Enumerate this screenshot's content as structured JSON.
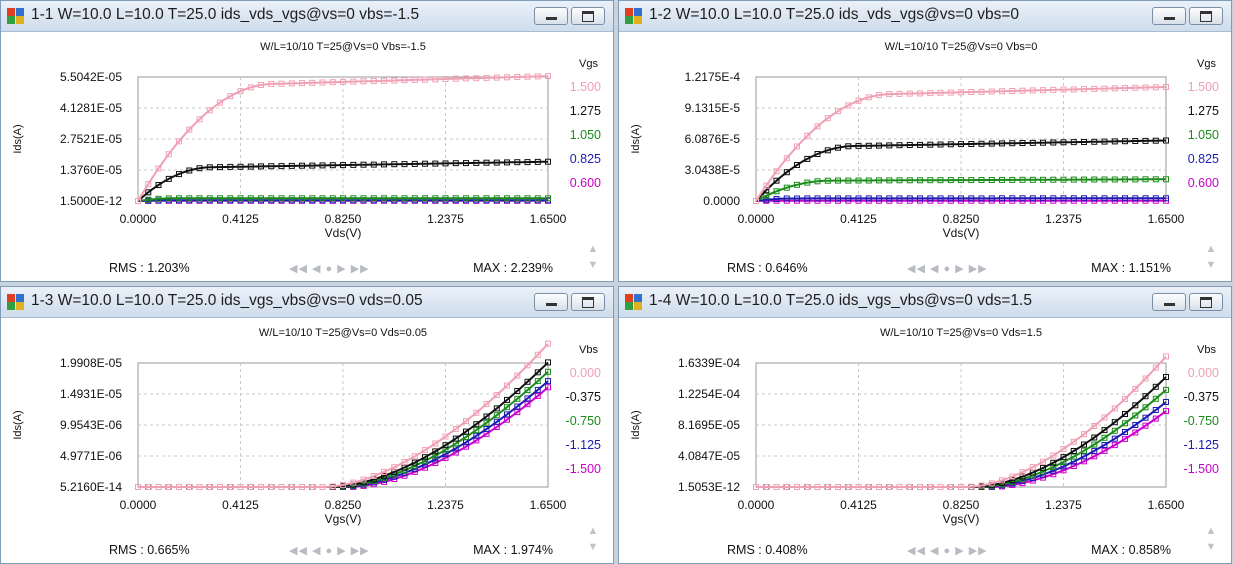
{
  "windows": [
    {
      "title": "1-1  W=10.0  L=10.0  T=25.0  ids_vds_vgs@vs=0 vbs=-1.5",
      "rms": "RMS : 1.203%",
      "max": "MAX : 2.239%",
      "chart_data": {
        "type": "line",
        "title": "W/L=10/10   T=25@Vs=0 Vbs=-1.5",
        "xlabel": "Vds(V)",
        "ylabel": "Ids(A)",
        "xlim": [
          0,
          1.65
        ],
        "ylim": [
          0,
          5.5042e-05
        ],
        "x_ticks": [
          "0.0000",
          "0.4125",
          "0.8250",
          "1.2375",
          "1.6500"
        ],
        "y_ticks": [
          {
            "label": "1.5000E-12",
            "value": 1.5e-12
          },
          {
            "label": "1.3760E-05",
            "value": 1.376e-05
          },
          {
            "label": "2.7521E-05",
            "value": 2.7521e-05
          },
          {
            "label": "4.1281E-05",
            "value": 4.1281e-05
          },
          {
            "label": "5.5042E-05",
            "value": 5.5042e-05
          }
        ],
        "legend_title": "Vgs",
        "grid": true,
        "series": [
          {
            "name": "0.600",
            "color": "#cc00cc",
            "model": {
              "kind": "sat",
              "max": 1e-07,
              "vsat": 0.1,
              "slope": 0
            }
          },
          {
            "name": "0.825",
            "color": "#1c1cb4",
            "model": {
              "kind": "sat",
              "max": 3e-07,
              "vsat": 0.12,
              "slope": 0
            }
          },
          {
            "name": "1.050",
            "color": "#1a8c1a",
            "model": {
              "kind": "sat",
              "max": 1.2e-06,
              "vsat": 0.15,
              "slope": 0
            }
          },
          {
            "name": "1.275",
            "color": "#111111",
            "model": {
              "kind": "sat",
              "max": 1.5e-05,
              "vsat": 0.3,
              "slope": 0.12
            }
          },
          {
            "name": "1.500",
            "color": "#f0a0b4",
            "model": {
              "kind": "sat",
              "max": 5.2e-05,
              "vsat": 0.55,
              "slope": 0.06
            }
          }
        ]
      }
    },
    {
      "title": "1-2  W=10.0  L=10.0  T=25.0  ids_vds_vgs@vs=0 vbs=0",
      "rms": "RMS : 0.646%",
      "max": "MAX : 1.151%",
      "chart_data": {
        "type": "line",
        "title": "W/L=10/10   T=25@Vs=0 Vbs=0",
        "xlabel": "Vds(V)",
        "ylabel": "Ids(A)",
        "xlim": [
          0,
          1.65
        ],
        "ylim": [
          0,
          0.00012175
        ],
        "x_ticks": [
          "0.0000",
          "0.4125",
          "0.8250",
          "1.2375",
          "1.6500"
        ],
        "y_ticks": [
          {
            "label": "0.0000",
            "value": 0
          },
          {
            "label": "3.0438E-5",
            "value": 3.0438e-05
          },
          {
            "label": "6.0876E-5",
            "value": 6.0876e-05
          },
          {
            "label": "9.1315E-5",
            "value": 9.1315e-05
          },
          {
            "label": "1.2175E-4",
            "value": 0.00012175
          }
        ],
        "legend_title": "Vgs",
        "grid": true,
        "series": [
          {
            "name": "0.600",
            "color": "#cc00cc",
            "model": {
              "kind": "sat",
              "max": 3e-07,
              "vsat": 0.1,
              "slope": 0
            }
          },
          {
            "name": "0.825",
            "color": "#1c1cb4",
            "model": {
              "kind": "sat",
              "max": 2.5e-06,
              "vsat": 0.15,
              "slope": 0.05
            }
          },
          {
            "name": "1.050",
            "color": "#1a8c1a",
            "model": {
              "kind": "sat",
              "max": 2e-05,
              "vsat": 0.3,
              "slope": 0.05
            }
          },
          {
            "name": "1.275",
            "color": "#111111",
            "model": {
              "kind": "sat",
              "max": 5.4e-05,
              "vsat": 0.4,
              "slope": 0.08
            }
          },
          {
            "name": "1.500",
            "color": "#f0a0b4",
            "model": {
              "kind": "sat",
              "max": 0.000105,
              "vsat": 0.55,
              "slope": 0.06
            }
          }
        ]
      }
    },
    {
      "title": "1-3  W=10.0  L=10.0  T=25.0  ids_vgs_vbs@vs=0 vds=0.05",
      "rms": "RMS : 0.665%",
      "max": "MAX : 1.974%",
      "chart_data": {
        "type": "line",
        "title": "W/L=10/10   T=25@Vs=0 Vds=0.05",
        "xlabel": "Vgs(V)",
        "ylabel": "Ids(A)",
        "xlim": [
          0,
          1.65
        ],
        "ylim": [
          0,
          1.9908e-05
        ],
        "x_ticks": [
          "0.0000",
          "0.4125",
          "0.8250",
          "1.2375",
          "1.6500"
        ],
        "y_ticks": [
          {
            "label": "5.2160E-14",
            "value": 5.216e-14
          },
          {
            "label": "4.9771E-06",
            "value": 4.9771e-06
          },
          {
            "label": "9.9543E-06",
            "value": 9.9543e-06
          },
          {
            "label": "1.4931E-05",
            "value": 1.4931e-05
          },
          {
            "label": "1.9908E-05",
            "value": 1.9908e-05
          }
        ],
        "legend_title": "Vbs",
        "grid": true,
        "series": [
          {
            "name": "-1.500",
            "color": "#cc00cc",
            "model": {
              "kind": "thr",
              "max": 1.6e-05,
              "vt": 0.85
            }
          },
          {
            "name": "-1.125",
            "color": "#1c1cb4",
            "model": {
              "kind": "thr",
              "max": 1.7e-05,
              "vt": 0.82
            }
          },
          {
            "name": "-0.750",
            "color": "#1a8c1a",
            "model": {
              "kind": "thr",
              "max": 1.85e-05,
              "vt": 0.8
            }
          },
          {
            "name": "-0.375",
            "color": "#111111",
            "model": {
              "kind": "thr",
              "max": 2e-05,
              "vt": 0.78
            }
          },
          {
            "name": "0.000",
            "color": "#f0a0b4",
            "model": {
              "kind": "thr",
              "max": 2.3e-05,
              "vt": 0.75
            }
          }
        ]
      }
    },
    {
      "title": "1-4  W=10.0  L=10.0  T=25.0  ids_vgs_vbs@vs=0 vds=1.5",
      "rms": "RMS : 0.408%",
      "max": "MAX : 0.858%",
      "chart_data": {
        "type": "line",
        "title": "W/L=10/10   T=25@Vs=0 Vds=1.5",
        "xlabel": "Vgs(V)",
        "ylabel": "Ids(A)",
        "xlim": [
          0,
          1.65
        ],
        "ylim": [
          0,
          0.00016339
        ],
        "x_ticks": [
          "0.0000",
          "0.4125",
          "0.8250",
          "1.2375",
          "1.6500"
        ],
        "y_ticks": [
          {
            "label": "1.5053E-12",
            "value": 1.5053e-12
          },
          {
            "label": "4.0847E-05",
            "value": 4.0847e-05
          },
          {
            "label": "8.1695E-05",
            "value": 8.1695e-05
          },
          {
            "label": "1.2254E-04",
            "value": 0.00012254
          },
          {
            "label": "1.6339E-04",
            "value": 0.00016339
          }
        ],
        "legend_title": "Vbs",
        "grid": true,
        "series": [
          {
            "name": "-1.500",
            "color": "#cc00cc",
            "model": {
              "kind": "thr",
              "max": 0.0001,
              "vt": 0.95
            }
          },
          {
            "name": "-1.125",
            "color": "#1c1cb4",
            "model": {
              "kind": "thr",
              "max": 0.000112,
              "vt": 0.92
            }
          },
          {
            "name": "-0.750",
            "color": "#1a8c1a",
            "model": {
              "kind": "thr",
              "max": 0.000128,
              "vt": 0.9
            }
          },
          {
            "name": "-0.375",
            "color": "#111111",
            "model": {
              "kind": "thr",
              "max": 0.000145,
              "vt": 0.88
            }
          },
          {
            "name": "0.000",
            "color": "#f0a0b4",
            "model": {
              "kind": "thr",
              "max": 0.000172,
              "vt": 0.85
            }
          }
        ]
      }
    }
  ]
}
